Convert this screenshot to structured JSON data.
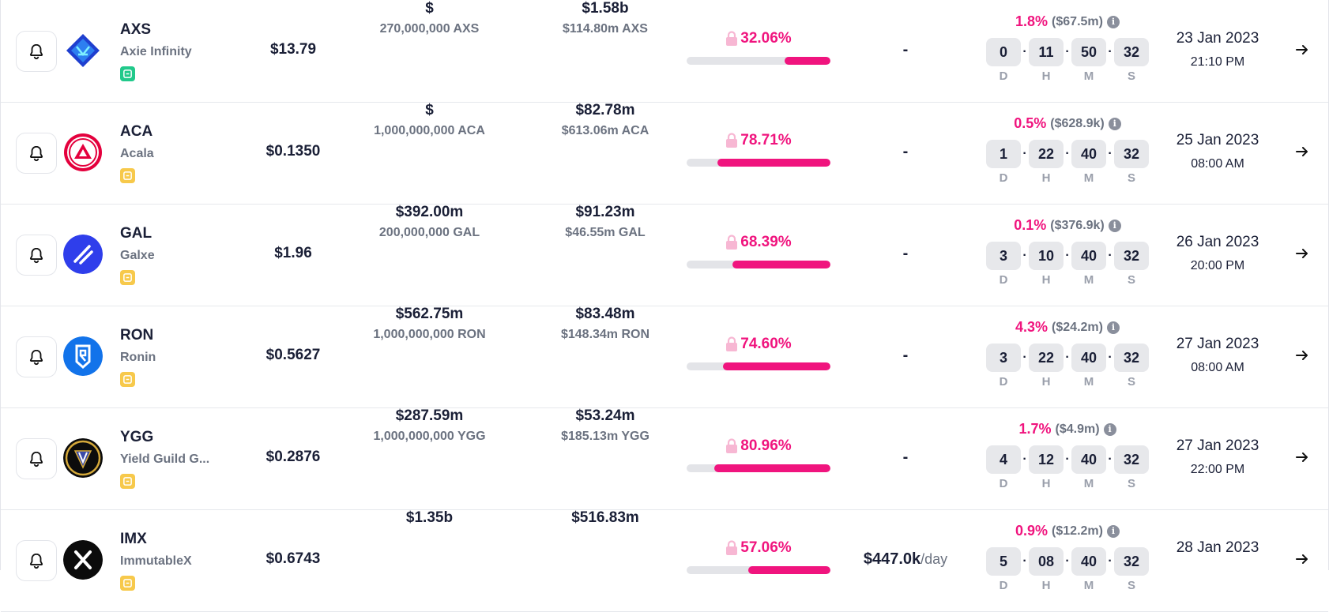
{
  "rows": [
    {
      "symbol": "AXS",
      "name": "Axie Infinity",
      "tag": "green",
      "price": "$13.79",
      "mcap": "$",
      "supply": "270,000,000 AXS",
      "volume": "$1.58b",
      "volume_sub": "$114.80m AXS",
      "locked_pct": "32.06%",
      "locked_fraction": 0.3206,
      "rate": "-",
      "rate_unit": "",
      "unlock_pct": "1.8%",
      "unlock_value": "($67.5m)",
      "countdown": [
        "0",
        "11",
        "50",
        "32"
      ],
      "date": "23 Jan 2023",
      "time": "21:10 PM",
      "logo": "axs-logo"
    },
    {
      "symbol": "ACA",
      "name": "Acala",
      "tag": "yellow",
      "price": "$0.1350",
      "mcap": "$",
      "supply": "1,000,000,000 ACA",
      "volume": "$82.78m",
      "volume_sub": "$613.06m ACA",
      "locked_pct": "78.71%",
      "locked_fraction": 0.7871,
      "rate": "-",
      "rate_unit": "",
      "unlock_pct": "0.5%",
      "unlock_value": "($628.9k)",
      "countdown": [
        "1",
        "22",
        "40",
        "32"
      ],
      "date": "25 Jan 2023",
      "time": "08:00 AM",
      "logo": "aca-logo"
    },
    {
      "symbol": "GAL",
      "name": "Galxe",
      "tag": "yellow",
      "price": "$1.96",
      "mcap": "$392.00m",
      "supply": "200,000,000 GAL",
      "volume": "$91.23m",
      "volume_sub": "$46.55m GAL",
      "locked_pct": "68.39%",
      "locked_fraction": 0.6839,
      "rate": "-",
      "rate_unit": "",
      "unlock_pct": "0.1%",
      "unlock_value": "($376.9k)",
      "countdown": [
        "3",
        "10",
        "40",
        "32"
      ],
      "date": "26 Jan 2023",
      "time": "20:00 PM",
      "logo": "gal-logo"
    },
    {
      "symbol": "RON",
      "name": "Ronin",
      "tag": "yellow",
      "price": "$0.5627",
      "mcap": "$562.75m",
      "supply": "1,000,000,000 RON",
      "volume": "$83.48m",
      "volume_sub": "$148.34m RON",
      "locked_pct": "74.60%",
      "locked_fraction": 0.746,
      "rate": "-",
      "rate_unit": "",
      "unlock_pct": "4.3%",
      "unlock_value": "($24.2m)",
      "countdown": [
        "3",
        "22",
        "40",
        "32"
      ],
      "date": "27 Jan 2023",
      "time": "08:00 AM",
      "logo": "ron-logo"
    },
    {
      "symbol": "YGG",
      "name": "Yield Guild G...",
      "tag": "yellow",
      "price": "$0.2876",
      "mcap": "$287.59m",
      "supply": "1,000,000,000 YGG",
      "volume": "$53.24m",
      "volume_sub": "$185.13m YGG",
      "locked_pct": "80.96%",
      "locked_fraction": 0.8096,
      "rate": "-",
      "rate_unit": "",
      "unlock_pct": "1.7%",
      "unlock_value": "($4.9m)",
      "countdown": [
        "4",
        "12",
        "40",
        "32"
      ],
      "date": "27 Jan 2023",
      "time": "22:00 PM",
      "logo": "ygg-logo"
    },
    {
      "symbol": "IMX",
      "name": "ImmutableX",
      "tag": "yellow",
      "price": "$0.6743",
      "mcap": "$1.35b",
      "supply": "",
      "volume": "$516.83m",
      "volume_sub": "",
      "locked_pct": "57.06%",
      "locked_fraction": 0.5706,
      "rate": "$447.0k",
      "rate_unit": "/day",
      "unlock_pct": "0.9%",
      "unlock_value": "($12.2m)",
      "countdown": [
        "5",
        "08",
        "40",
        "32"
      ],
      "date": "28 Jan 2023",
      "time": "",
      "logo": "imx-logo"
    }
  ],
  "countdown_labels": [
    "D",
    "H",
    "M",
    "S"
  ],
  "colors": {
    "accent": "#f0147e",
    "muted": "#6b7280",
    "box": "#e7e8eb"
  }
}
